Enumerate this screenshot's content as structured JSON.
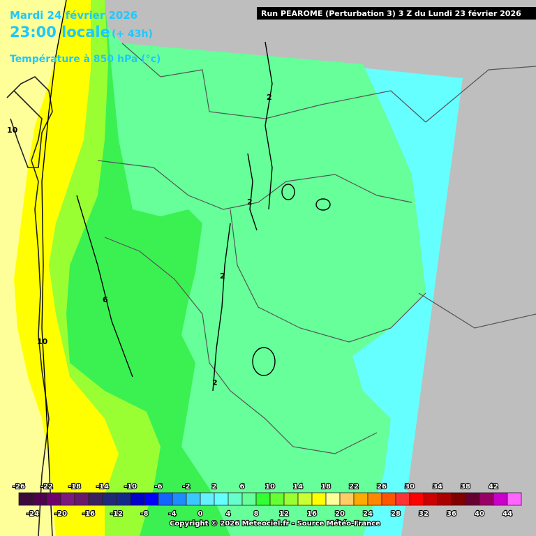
{
  "header": {
    "date": "Mardi 24 février 2026",
    "time": "23:00 locale",
    "lead": "(+ 43h)",
    "variable": "Température à 850 hPa (°c)",
    "run": "Run PEAROME (Perturbation 3) 3 Z du Lundi 23 février 2026"
  },
  "contour_labels": [
    "10",
    "2",
    "2",
    "2",
    "6",
    "10",
    "2"
  ],
  "legend": {
    "values": [
      -26,
      -24,
      -22,
      -20,
      -18,
      -16,
      -14,
      -12,
      -10,
      -8,
      -6,
      -4,
      -2,
      0,
      2,
      4,
      6,
      8,
      10,
      12,
      14,
      16,
      18,
      20,
      22,
      24,
      26,
      28,
      30,
      32,
      34,
      36,
      38,
      40,
      42,
      44
    ],
    "colors": [
      "#3b0a3b",
      "#4f004f",
      "#6e006e",
      "#7d1a7d",
      "#6a1a6a",
      "#3c2060",
      "#1e2a78",
      "#14288c",
      "#0000c8",
      "#0000ff",
      "#1464ff",
      "#1e8cff",
      "#3cc8ff",
      "#66f0ff",
      "#66ffff",
      "#66ffcc",
      "#66ff99",
      "#33ff33",
      "#66ff33",
      "#99ff33",
      "#ccff33",
      "#ffff00",
      "#ffff99",
      "#ffcc66",
      "#ffaa00",
      "#ff8800",
      "#ff5500",
      "#ff3333",
      "#ff0000",
      "#cc0000",
      "#aa0000",
      "#800000",
      "#660033",
      "#990066",
      "#cc00cc",
      "#ff66ff"
    ]
  },
  "footer": "Copyright © 2026 Meteociel.fr - Source Météo-France"
}
